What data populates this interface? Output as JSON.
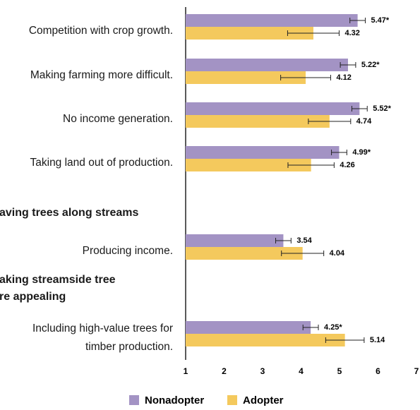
{
  "chart_data": {
    "type": "bar",
    "orientation": "horizontal",
    "categories": [
      "Competition with crop growth.",
      "Making farming more difficult.",
      "No income generation.",
      "Taking land out of production.",
      "Producing income.",
      "Including high-value trees for\ntimber production."
    ],
    "annotations": [
      "aving trees along streams",
      "aking streamside tree",
      "re appealing"
    ],
    "series": [
      {
        "name": "Nonadopter",
        "color": "#a393c4",
        "values": [
          5.47,
          5.22,
          5.52,
          4.99,
          3.54,
          4.25
        ],
        "errors": [
          0.2,
          0.2,
          0.2,
          0.2,
          0.2,
          0.2
        ],
        "value_labels": [
          "5.47*",
          "5.22*",
          "5.52*",
          "4.99*",
          "3.54",
          "4.25*"
        ]
      },
      {
        "name": "Adopter",
        "color": "#f4c95d",
        "values": [
          4.32,
          4.12,
          4.74,
          4.26,
          4.04,
          5.14
        ],
        "errors": [
          0.67,
          0.65,
          0.55,
          0.6,
          0.55,
          0.5
        ],
        "value_labels": [
          "4.32",
          "4.12",
          "4.74",
          "4.26",
          "4.04",
          "5.14"
        ]
      }
    ],
    "xlim": [
      1,
      7
    ],
    "xticks": [
      1,
      2,
      3,
      4,
      5,
      6,
      7
    ],
    "grid": false
  }
}
